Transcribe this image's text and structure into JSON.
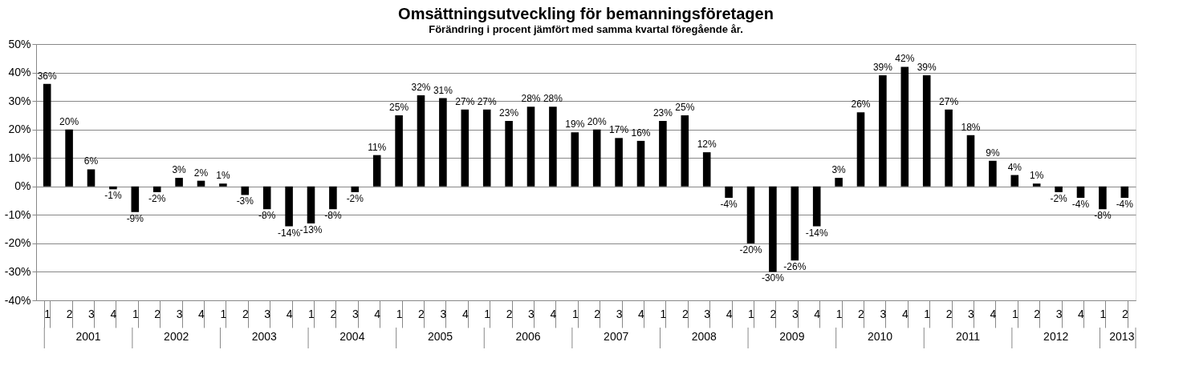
{
  "chart_data": {
    "type": "bar",
    "title": "Omsättningsutveckling för bemanningsföretagen",
    "subtitle": "Förändring i procent jämfört med samma kvartal föregående år.",
    "categories": [
      "1",
      "2",
      "3",
      "4",
      "1",
      "2",
      "3",
      "4",
      "1",
      "2",
      "3",
      "4",
      "1",
      "2",
      "3",
      "4",
      "1",
      "2",
      "3",
      "4",
      "1",
      "2",
      "3",
      "4",
      "1",
      "2",
      "3",
      "4",
      "1",
      "2",
      "3",
      "4",
      "1",
      "2",
      "3",
      "4",
      "1",
      "2",
      "3",
      "4",
      "1",
      "2",
      "3",
      "4",
      "1",
      "2",
      "3",
      "4",
      "1",
      "2"
    ],
    "values": [
      36,
      20,
      6,
      -1,
      -9,
      -2,
      3,
      2,
      1,
      -3,
      -8,
      -14,
      -13,
      -8,
      -2,
      11,
      25,
      32,
      31,
      27,
      27,
      23,
      28,
      28,
      19,
      20,
      17,
      16,
      23,
      25,
      12,
      -4,
      -20,
      -30,
      -26,
      -14,
      3,
      26,
      39,
      42,
      39,
      27,
      18,
      9,
      4,
      1,
      -2,
      -4,
      -8,
      -4
    ],
    "value_labels": [
      "36%",
      "20%",
      "6%",
      "-1%",
      "-9%",
      "-2%",
      "3%",
      "2%",
      "1%",
      "-3%",
      "-8%",
      "-14%",
      "-13%",
      "-8%",
      "-2%",
      "11%",
      "25%",
      "32%",
      "31%",
      "27%",
      "27%",
      "23%",
      "28%",
      "28%",
      "19%",
      "20%",
      "17%",
      "16%",
      "23%",
      "25%",
      "12%",
      "-4%",
      "-20%",
      "-30%",
      "-26%",
      "-14%",
      "3%",
      "26%",
      "39%",
      "42%",
      "39%",
      "27%",
      "18%",
      "9%",
      "4%",
      "1%",
      "-2%",
      "-4%",
      "-8%",
      "-4%"
    ],
    "color": "#000000",
    "annotations": [
      "2001",
      "2002",
      "2003",
      "2004",
      "2005",
      "2006",
      "2007",
      "2008",
      "2009",
      "2010",
      "2011",
      "2012",
      "2013"
    ],
    "ylim": [
      -40,
      50
    ],
    "yticks": [
      {
        "value": -40,
        "label": "-40%"
      },
      {
        "value": -30,
        "label": "-30%"
      },
      {
        "value": -20,
        "label": "-20%"
      },
      {
        "value": -10,
        "label": "-10%"
      },
      {
        "value": 0,
        "label": "0%"
      },
      {
        "value": 10,
        "label": "10%"
      },
      {
        "value": 20,
        "label": "20%"
      },
      {
        "value": 30,
        "label": "30%"
      },
      {
        "value": 40,
        "label": "40%"
      },
      {
        "value": 50,
        "label": "50%"
      }
    ],
    "grid": "y"
  }
}
